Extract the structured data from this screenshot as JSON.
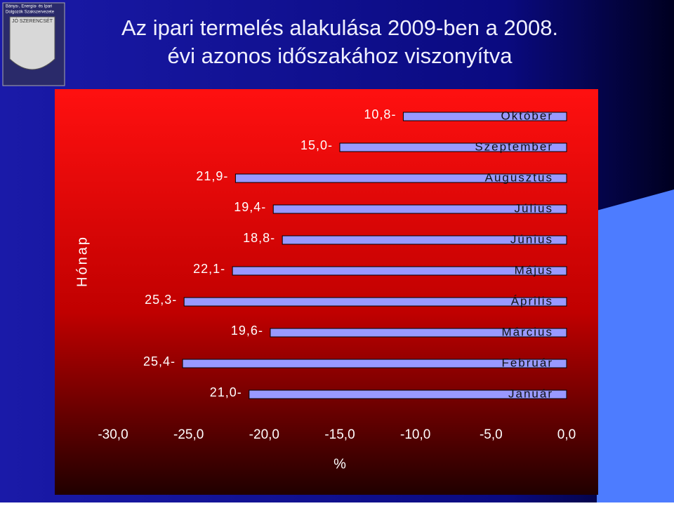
{
  "logo": {
    "line1": "Bánya-, Energia- és Ipari",
    "line2": "Dolgozók Szakszervezete",
    "motto": "JÓ SZERENCSÉT"
  },
  "chart_data": {
    "type": "hbar",
    "title": [
      "Az ipari termelés alakulása 2009-ben a 2008.",
      "évi  azonos időszakához viszonyítva"
    ],
    "y_label": "Hónap",
    "x_label": "%",
    "categories": [
      "Január",
      "Február",
      "Március",
      "Április",
      "Május",
      "Június",
      "Július",
      "Augusztus",
      "Szeptember",
      "Október"
    ],
    "values": [
      -21.0,
      -25.4,
      -19.6,
      -25.3,
      -22.1,
      -18.8,
      -19.4,
      -21.9,
      -15.0,
      -10.8
    ],
    "value_labels": [
      "21,0-",
      "25,4-",
      "19,6-",
      "25,3-",
      "22,1-",
      "18,8-",
      "19,4-",
      "21,9-",
      "15,0-",
      "10,8-"
    ],
    "color": "#9999ff",
    "xlim": [
      -30,
      0
    ],
    "xticks": [
      {
        "value": -30,
        "label": "-30,0"
      },
      {
        "value": -25,
        "label": "-25,0"
      },
      {
        "value": -20,
        "label": "-20,0"
      },
      {
        "value": -15,
        "label": "-15,0"
      },
      {
        "value": -10,
        "label": "-10,0"
      },
      {
        "value": -5,
        "label": "-5,0"
      },
      {
        "value": 0,
        "label": "0,0"
      }
    ]
  }
}
